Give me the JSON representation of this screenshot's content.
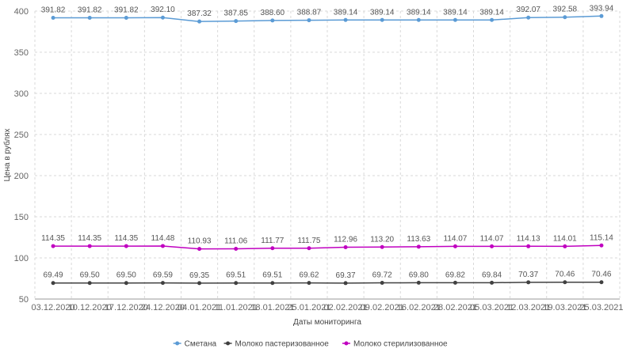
{
  "chart_data": {
    "type": "line",
    "title": "",
    "xlabel": "Даты мониторинга",
    "ylabel": "Цена в рублях",
    "ylim": [
      50,
      400
    ],
    "yticks": [
      50,
      100,
      150,
      200,
      250,
      300,
      350,
      400
    ],
    "grid": true,
    "legend_position": "bottom-center",
    "categories": [
      "03.12.2020",
      "10.12.2020",
      "17.12.2020",
      "24.12.2020",
      "04.01.2021",
      "11.01.2021",
      "18.01.2021",
      "25.01.2021",
      "02.02.2021",
      "09.02.2021",
      "16.02.2021",
      "28.02.2021",
      "05.03.2021",
      "12.03.2021",
      "19.03.2021",
      "25.03.2021"
    ],
    "series": [
      {
        "name": "Сметана",
        "color": "#5b9bd5",
        "values": [
          391.82,
          391.82,
          391.82,
          392.1,
          387.32,
          387.85,
          388.6,
          388.87,
          389.14,
          389.14,
          389.14,
          389.14,
          389.14,
          392.07,
          392.58,
          393.94
        ],
        "labels": [
          "391.82",
          "391.82",
          "391.82",
          "392.10",
          "387.32",
          "387.85",
          "388.60",
          "388.87",
          "389.14",
          "389.14",
          "389.14",
          "389.14",
          "389.14",
          "392.07",
          "392.58",
          "393.94"
        ]
      },
      {
        "name": "Молоко пастеризованное",
        "color": "#404040",
        "values": [
          69.49,
          69.5,
          69.5,
          69.59,
          69.35,
          69.51,
          69.51,
          69.62,
          69.37,
          69.72,
          69.8,
          69.82,
          69.84,
          70.37,
          70.46,
          70.46
        ],
        "labels": [
          "69.49",
          "69.50",
          "69.50",
          "69.59",
          "69.35",
          "69.51",
          "69.51",
          "69.62",
          "69.37",
          "69.72",
          "69.80",
          "69.82",
          "69.84",
          "70.37",
          "70.46",
          "70.46"
        ]
      },
      {
        "name": "Молоко стерилизованное",
        "color": "#c000c0",
        "values": [
          114.35,
          114.35,
          114.35,
          114.48,
          110.93,
          111.06,
          111.77,
          111.75,
          112.96,
          113.2,
          113.63,
          114.07,
          114.07,
          114.13,
          114.01,
          115.14
        ],
        "labels": [
          "114.35",
          "114.35",
          "114.35",
          "114.48",
          "110.93",
          "111.06",
          "111.77",
          "111.75",
          "112.96",
          "113.20",
          "113.63",
          "114.07",
          "114.07",
          "114.13",
          "114.01",
          "115.14"
        ]
      }
    ]
  }
}
